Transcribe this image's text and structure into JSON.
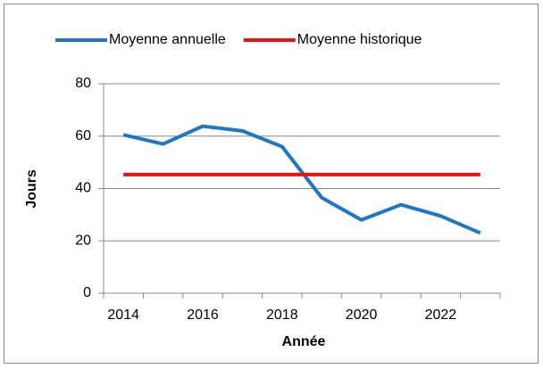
{
  "chart_data": {
    "type": "line",
    "categories": [
      "2014",
      null,
      "2016",
      null,
      "2018",
      null,
      "2020",
      null,
      "2022",
      null
    ],
    "series": [
      {
        "name": "Moyenne annuelle",
        "color": "#1f77c4",
        "values": [
          60.5,
          57,
          63.8,
          62,
          56,
          36.5,
          28,
          33.8,
          29.5,
          23
        ]
      },
      {
        "name": "Moyenne historique",
        "color": "#ee1111",
        "values": [
          45.3,
          45.3,
          45.3,
          45.3,
          45.3,
          45.3,
          45.3,
          45.3,
          45.3,
          45.3
        ]
      }
    ],
    "ylabel": "Jours",
    "xlabel": "Année",
    "ylim": [
      0,
      80
    ],
    "yticks": [
      0,
      20,
      40,
      60,
      80
    ],
    "grid": true,
    "legend": "top"
  }
}
